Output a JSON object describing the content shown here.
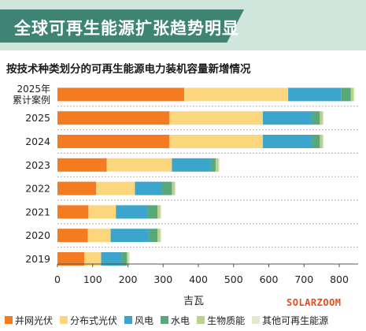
{
  "header": {
    "title": "全球可再生能源扩张趋势明显",
    "subtitle": "按技术种类划分的可再生能源电力装机容量新增情况"
  },
  "watermark": "SOLARZOOM",
  "colors": {
    "banner_bg": "#cfe6dd",
    "banner_dark": "#3f8473"
  },
  "chart_data": {
    "type": "bar",
    "orientation": "horizontal",
    "stacked": true,
    "title": "按技术种类划分的可再生能源电力装机容量新增情况",
    "xlabel": "吉瓦",
    "ylabel": "",
    "xlim": [
      0,
      850
    ],
    "xticks": [
      0,
      100,
      200,
      300,
      400,
      500,
      600,
      700,
      800
    ],
    "grid": "horizontal dotted separators",
    "legend_position": "bottom",
    "categories": [
      [
        "2025年",
        "累计案例"
      ],
      [
        "2025"
      ],
      [
        "2024"
      ],
      [
        "2023"
      ],
      [
        "2022"
      ],
      [
        "2021"
      ],
      [
        "2020"
      ],
      [
        "2019"
      ]
    ],
    "series": [
      {
        "name": "并网光伏",
        "color": "#f47b20",
        "values": [
          360,
          318,
          318,
          140,
          110,
          88,
          86,
          76
        ]
      },
      {
        "name": "分布式光伏",
        "color": "#fcd67c",
        "values": [
          295,
          265,
          265,
          185,
          110,
          78,
          65,
          48
        ]
      },
      {
        "name": "风电",
        "color": "#3ba5cc",
        "values": [
          150,
          140,
          140,
          112,
          75,
          90,
          108,
          58
        ]
      },
      {
        "name": "水电",
        "color": "#59a87a",
        "values": [
          28,
          22,
          22,
          12,
          30,
          28,
          25,
          15
        ]
      },
      {
        "name": "生物质能",
        "color": "#b8d38b",
        "values": [
          8,
          8,
          8,
          8,
          8,
          8,
          8,
          5
        ]
      },
      {
        "name": "其他可再生能源",
        "color": "#e6e8cf",
        "values": [
          3,
          3,
          3,
          3,
          3,
          3,
          3,
          3
        ]
      }
    ]
  }
}
